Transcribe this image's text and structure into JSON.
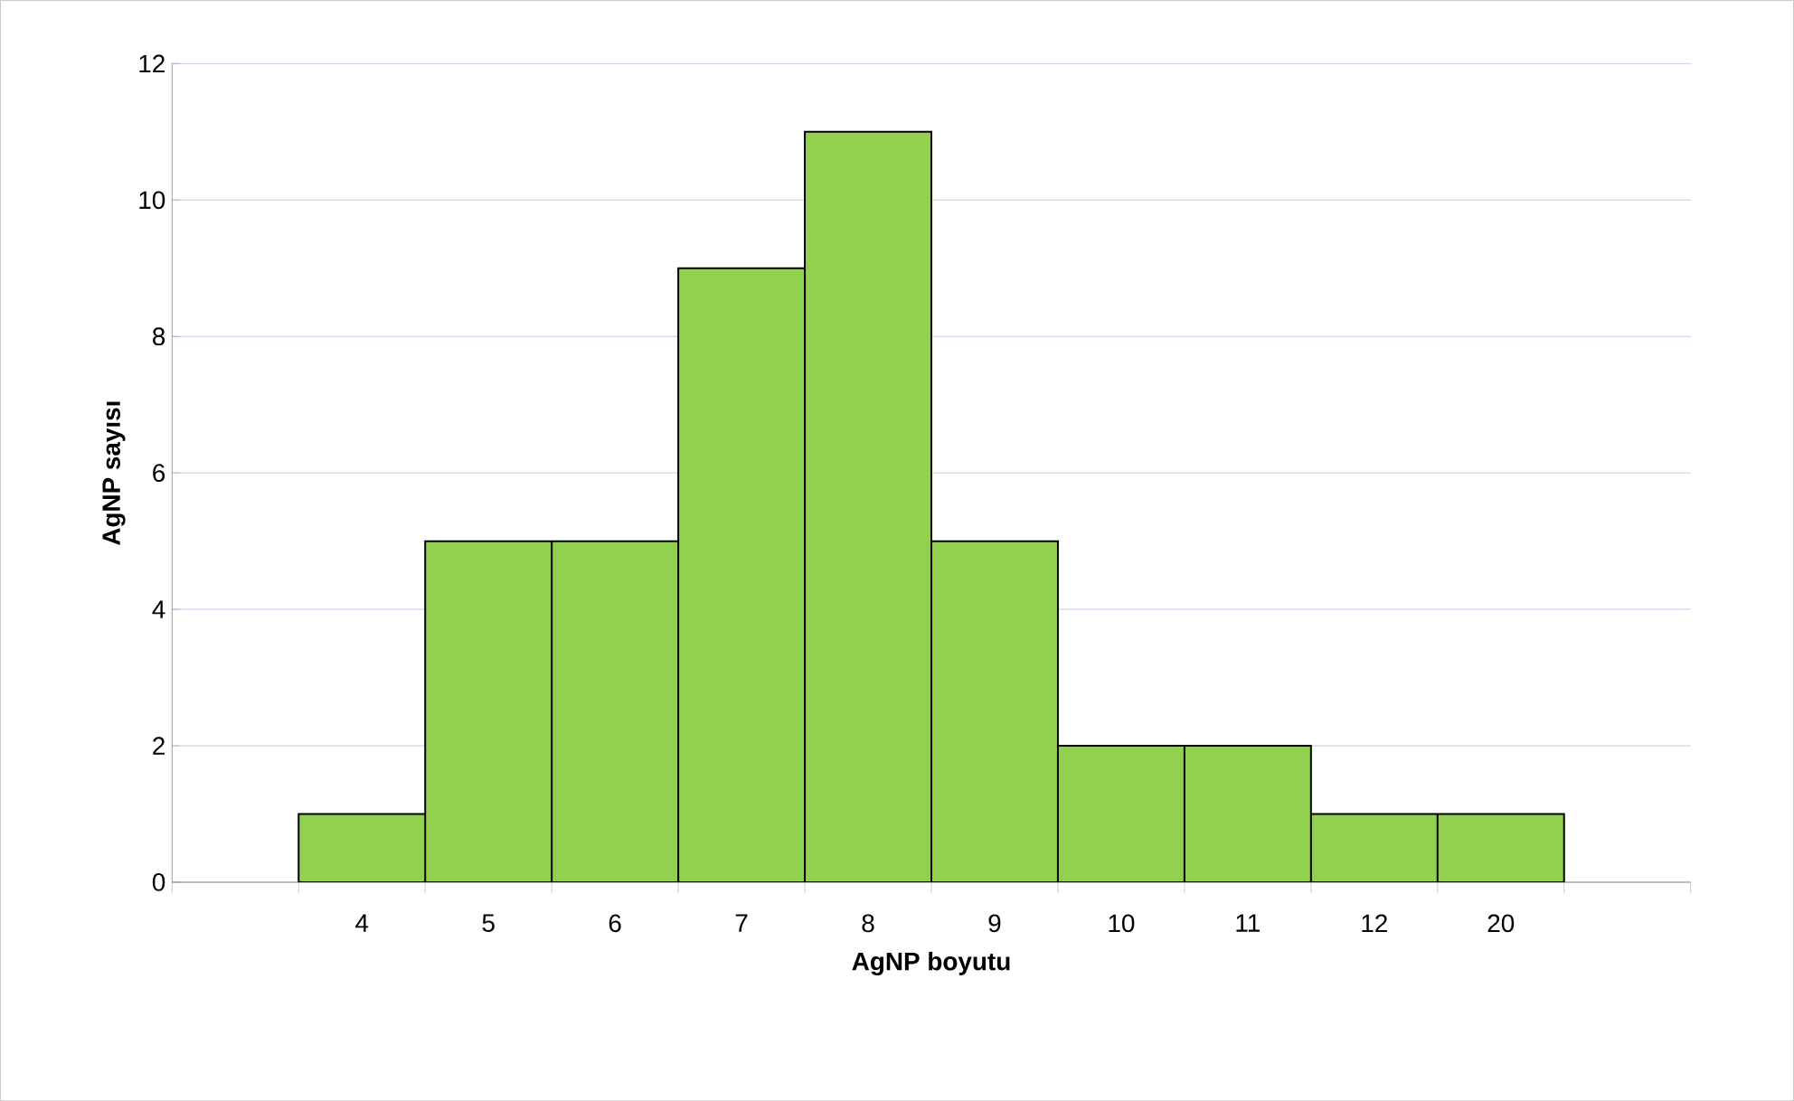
{
  "chart_data": {
    "type": "bar",
    "xlabel": "AgNP boyutu",
    "ylabel": "AgNP sayısı",
    "categories": [
      null,
      "4",
      "5",
      "6",
      "7",
      "8",
      "9",
      "10",
      "11",
      "12",
      "20",
      null
    ],
    "values": [
      null,
      1,
      5,
      5,
      9,
      11,
      5,
      2,
      2,
      1,
      1,
      null
    ],
    "color": "#92d050",
    "ylim": [
      0,
      12
    ],
    "yticks": [
      0,
      2,
      4,
      6,
      8,
      10,
      12
    ],
    "grid": "y"
  }
}
